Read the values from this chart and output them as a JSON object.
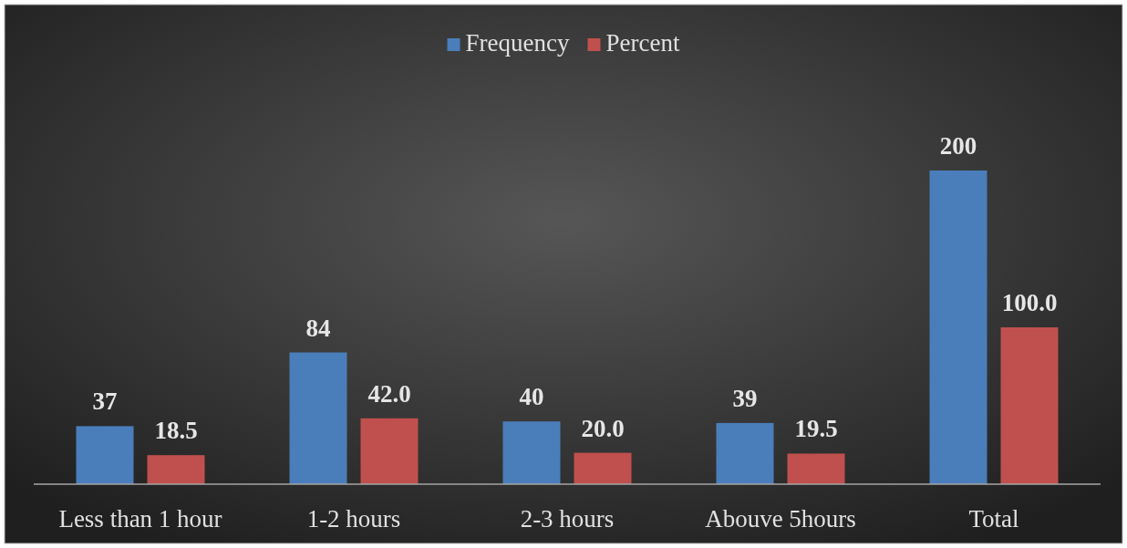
{
  "chart_data": {
    "type": "bar",
    "categories": [
      "Less than 1 hour",
      "1-2 hours",
      "2-3 hours",
      "Abouve 5hours",
      "Total"
    ],
    "series": [
      {
        "name": "Frequency",
        "color": "#4a7ebb",
        "values": [
          37,
          84,
          40,
          39,
          200
        ],
        "value_labels": [
          "37",
          "84",
          "40",
          "39",
          "200"
        ]
      },
      {
        "name": "Percent",
        "color": "#c0504d",
        "values": [
          18.5,
          42.0,
          20.0,
          19.5,
          100.0
        ],
        "value_labels": [
          "18.5",
          "42.0",
          "20.0",
          "19.5",
          "100.0"
        ]
      }
    ],
    "grid": false,
    "data_labels": true,
    "legend": "top",
    "tick_labels": "x"
  }
}
